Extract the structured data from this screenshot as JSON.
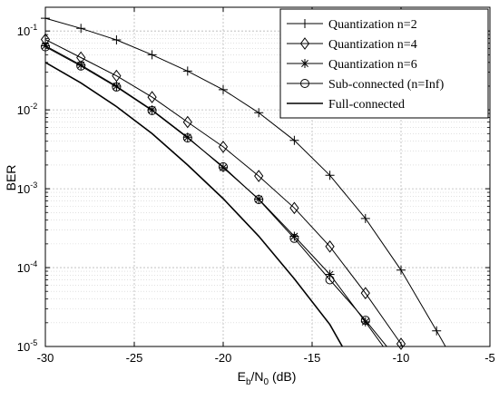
{
  "chart_data": {
    "type": "line",
    "xlabel": "E_b/N_0 (dB)",
    "xlabel_parts": {
      "base1": "E",
      "sub1": "b",
      "slash": "/N",
      "sub2": "0",
      "unit": " (dB)"
    },
    "ylabel": "BER",
    "xlim": [
      -30,
      -5
    ],
    "ylim": [
      1e-05,
      0.2
    ],
    "y_scale": "log",
    "grid": true,
    "legend_position": "top-right",
    "x_ticks": [
      {
        "value": -30,
        "label": "-30"
      },
      {
        "value": -25,
        "label": "-25"
      },
      {
        "value": -20,
        "label": "-20"
      },
      {
        "value": -15,
        "label": "-15"
      },
      {
        "value": -10,
        "label": "-10"
      },
      {
        "value": -5,
        "label": "-5"
      }
    ],
    "y_ticks": [
      {
        "value": 0.1,
        "base": "10",
        "exp": "-1"
      },
      {
        "value": 0.01,
        "base": "10",
        "exp": "-2"
      },
      {
        "value": 0.001,
        "base": "10",
        "exp": "-3"
      },
      {
        "value": 0.0001,
        "base": "10",
        "exp": "-4"
      },
      {
        "value": 1e-05,
        "base": "10",
        "exp": "-5"
      }
    ],
    "series": [
      {
        "name": "Quantization n=2",
        "marker": "plus",
        "x": [
          -30,
          -28,
          -26,
          -24,
          -22,
          -20,
          -18,
          -16,
          -14,
          -12,
          -10,
          -8,
          -7.5
        ],
        "y": [
          0.145,
          0.108,
          0.077,
          0.05,
          0.031,
          0.018,
          0.0092,
          0.0041,
          0.00148,
          0.00042,
          9.3e-05,
          1.58e-05,
          1e-05
        ]
      },
      {
        "name": "Quantization n=4",
        "marker": "diamond",
        "x": [
          -30,
          -28,
          -26,
          -24,
          -22,
          -20,
          -18,
          -16,
          -14,
          -12,
          -10,
          -9.9
        ],
        "y": [
          0.078,
          0.046,
          0.027,
          0.0145,
          0.007,
          0.0034,
          0.00145,
          0.00057,
          0.000185,
          4.75e-05,
          1.08e-05,
          1e-05
        ]
      },
      {
        "name": "Quantization n=6",
        "marker": "asterisk",
        "x": [
          -30,
          -28,
          -26,
          -24,
          -22,
          -20,
          -18,
          -16,
          -14,
          -12,
          -11
        ],
        "y": [
          0.065,
          0.037,
          0.02,
          0.01,
          0.0045,
          0.00185,
          0.00074,
          0.00025,
          8.2e-05,
          2.05e-05,
          1e-05
        ]
      },
      {
        "name": "Sub-connected (n=Inf)",
        "marker": "circle",
        "x": [
          -30,
          -28,
          -26,
          -24,
          -22,
          -20,
          -18,
          -16,
          -14,
          -12,
          -10.8
        ],
        "y": [
          0.063,
          0.036,
          0.0195,
          0.0098,
          0.0044,
          0.0019,
          0.00073,
          0.000235,
          7e-05,
          2.15e-05,
          1e-05
        ]
      },
      {
        "name": "Full-connected",
        "marker": "none",
        "x": [
          -30,
          -28,
          -26,
          -24,
          -22,
          -20,
          -18,
          -16,
          -14,
          -13.3
        ],
        "y": [
          0.04,
          0.022,
          0.011,
          0.005,
          0.002,
          0.00075,
          0.00025,
          7.2e-05,
          1.9e-05,
          1e-05
        ]
      }
    ]
  }
}
